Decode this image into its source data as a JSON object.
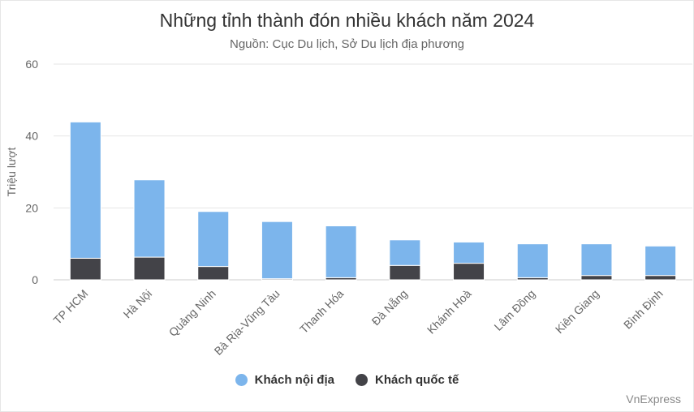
{
  "chart_data": {
    "type": "bar",
    "stacked": true,
    "title": "Những tỉnh thành đón nhiều khách năm 2024",
    "subtitle": "Nguồn: Cục Du lịch, Sở Du lịch địa phương",
    "ylabel": "Triệu lượt",
    "xlabel": "",
    "ylim": [
      0,
      60
    ],
    "yticks": [
      0,
      20,
      40,
      60
    ],
    "grid": true,
    "legend_position": "bottom",
    "categories": [
      "TP HCM",
      "Hà Nội",
      "Quảng Ninh",
      "Bà Rịa-Vũng Tàu",
      "Thanh Hóa",
      "Đà Nẵng",
      "Khánh Hoà",
      "Lâm Đồng",
      "Kiên Giang",
      "Bình Định"
    ],
    "series": [
      {
        "name": "Khách nội địa",
        "color": "#7cb5ec",
        "values": [
          37.9,
          21.5,
          15.3,
          15.9,
          14.4,
          7.1,
          5.9,
          9.4,
          8.8,
          8.2
        ]
      },
      {
        "name": "Khách quốc tế",
        "color": "#434348",
        "values": [
          6.0,
          6.3,
          3.7,
          0.3,
          0.6,
          4.0,
          4.6,
          0.6,
          1.2,
          1.2
        ]
      }
    ]
  },
  "credit": "VnExpress"
}
